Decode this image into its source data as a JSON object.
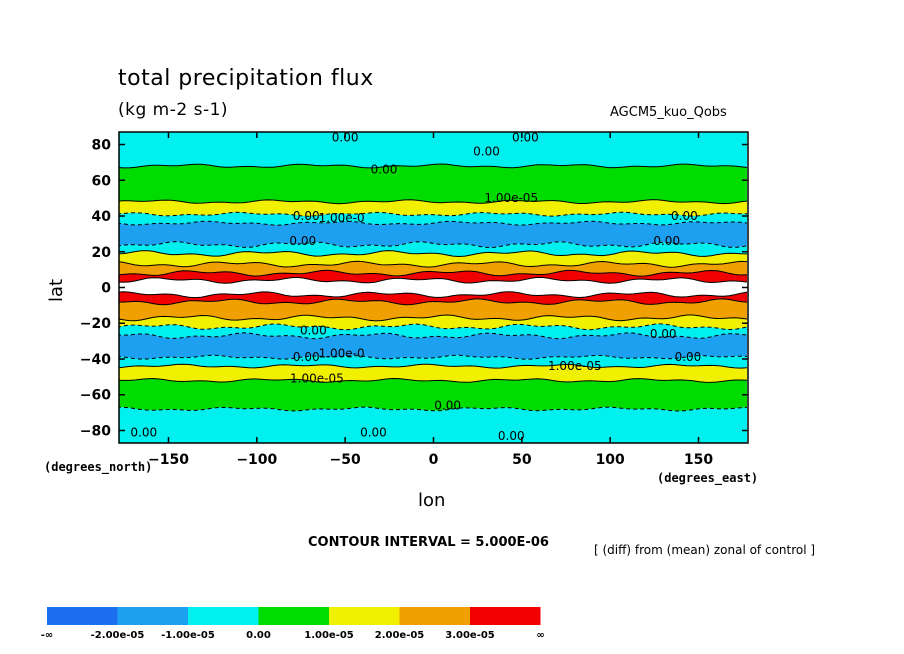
{
  "header": {
    "title": "total precipitation flux",
    "units": "(kg m-2 s-1)",
    "run_name": "AGCM5_kuo_Qobs"
  },
  "footer": {
    "contour_interval": "CONTOUR INTERVAL = 5.000E-06",
    "diff_note": "[ (diff) from (mean) zonal of control ]"
  },
  "chart_data": {
    "type": "heatmap",
    "title": "total precipitation flux",
    "subtitle": "(kg m-2 s-1)",
    "xlabel": "lon",
    "ylabel": "lat",
    "x_unit_label": "(degrees_east)",
    "y_unit_label": "(degrees_north)",
    "xlim": [
      -178,
      178
    ],
    "ylim": [
      -87,
      87
    ],
    "x_ticks": [
      -150,
      -100,
      -50,
      0,
      50,
      100,
      150
    ],
    "y_ticks": [
      80,
      60,
      40,
      20,
      0,
      -20,
      -40,
      -60,
      -80
    ],
    "contour_interval": 5e-06,
    "color_levels": [
      {
        "label": "-∞",
        "color": "#1e6ef0"
      },
      {
        "label": "-2.00e-05",
        "color": "#1ea0f0"
      },
      {
        "label": "-1.00e-05",
        "color": "#00f0f0"
      },
      {
        "label": "0.00",
        "color": "#00dc00"
      },
      {
        "label": "1.00e-05",
        "color": "#f0f000"
      },
      {
        "label": "2.00e-05",
        "color": "#f0a000"
      },
      {
        "label": "3.00e-05",
        "color": "#f00000"
      },
      {
        "label": "∞",
        "color": "#ffffff"
      }
    ],
    "colorbar_labels": [
      "-∞",
      "-2.00e-05",
      "-1.00e-05",
      "0.00",
      "1.00e-05",
      "2.00e-05",
      "3.00e-05",
      "∞"
    ],
    "zonal_bands": [
      {
        "lat_top": 87,
        "lat_bot": 68,
        "level": "cyan"
      },
      {
        "lat_top": 68,
        "lat_bot": 48,
        "level": "green"
      },
      {
        "lat_top": 48,
        "lat_bot": 41,
        "level": "yellow"
      },
      {
        "lat_top": 41,
        "lat_bot": 36,
        "level": "cyan"
      },
      {
        "lat_top": 36,
        "lat_bot": 24,
        "level": "blue"
      },
      {
        "lat_top": 24,
        "lat_bot": 19,
        "level": "cyan"
      },
      {
        "lat_top": 19,
        "lat_bot": 13,
        "level": "yellow"
      },
      {
        "lat_top": 13,
        "lat_bot": 8,
        "level": "orange"
      },
      {
        "lat_top": 8,
        "lat_bot": 4,
        "level": "red"
      },
      {
        "lat_top": 4,
        "lat_bot": -4,
        "level": "white"
      },
      {
        "lat_top": -4,
        "lat_bot": -8,
        "level": "red"
      },
      {
        "lat_top": -8,
        "lat_bot": -17,
        "level": "orange"
      },
      {
        "lat_top": -17,
        "lat_bot": -22,
        "level": "yellow"
      },
      {
        "lat_top": -22,
        "lat_bot": -27,
        "level": "cyan"
      },
      {
        "lat_top": -27,
        "lat_bot": -39,
        "level": "blue"
      },
      {
        "lat_top": -39,
        "lat_bot": -44,
        "level": "cyan"
      },
      {
        "lat_top": -44,
        "lat_bot": -52,
        "level": "yellow"
      },
      {
        "lat_top": -52,
        "lat_bot": -68,
        "level": "green"
      },
      {
        "lat_top": -68,
        "lat_bot": -87,
        "level": "cyan"
      }
    ],
    "contour_labels": [
      {
        "text": "0.00",
        "lon": -50,
        "lat": 84
      },
      {
        "text": "0.00",
        "lon": 52,
        "lat": 84
      },
      {
        "text": "0.00",
        "lon": 30,
        "lat": 76
      },
      {
        "text": "0.00",
        "lon": -28,
        "lat": 66
      },
      {
        "text": "1.00e-05",
        "lon": 44,
        "lat": 50
      },
      {
        "text": "0.00",
        "lon": -72,
        "lat": 40
      },
      {
        "text": "1.00e-0",
        "lon": -52,
        "lat": 39
      },
      {
        "text": "0.00",
        "lon": 142,
        "lat": 40
      },
      {
        "text": "0.00",
        "lon": -74,
        "lat": 26
      },
      {
        "text": "0.00",
        "lon": 132,
        "lat": 26
      },
      {
        "text": "0.00",
        "lon": -68,
        "lat": -24
      },
      {
        "text": "0.00",
        "lon": 130,
        "lat": -26
      },
      {
        "text": "0.00",
        "lon": -72,
        "lat": -39
      },
      {
        "text": "1.00e-0",
        "lon": -52,
        "lat": -37
      },
      {
        "text": "0.00",
        "lon": 144,
        "lat": -39
      },
      {
        "text": "1.00e-05",
        "lon": 80,
        "lat": -44
      },
      {
        "text": "1.00e-05",
        "lon": -66,
        "lat": -51
      },
      {
        "text": "0.00",
        "lon": 8,
        "lat": -66
      },
      {
        "text": "0.00",
        "lon": -164,
        "lat": -81
      },
      {
        "text": "0.00",
        "lon": -34,
        "lat": -81
      },
      {
        "text": "0.00",
        "lon": 44,
        "lat": -83
      }
    ]
  }
}
